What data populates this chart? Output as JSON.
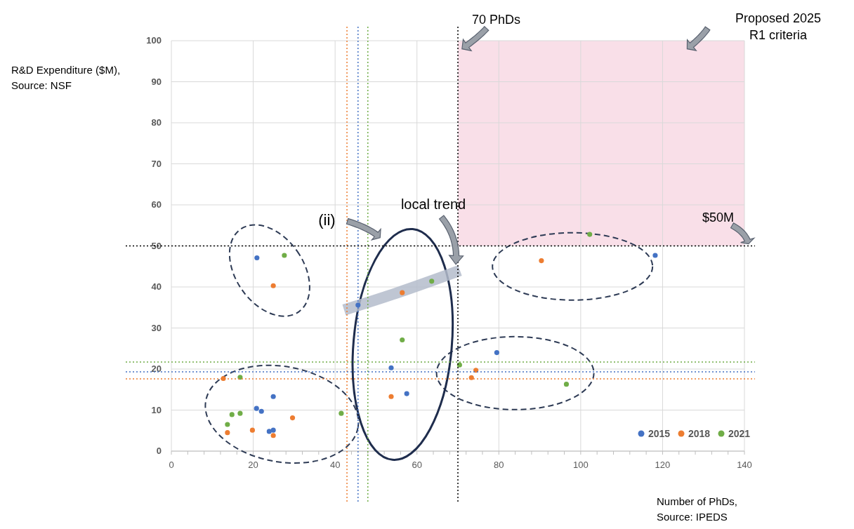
{
  "chart_data": {
    "type": "scatter",
    "xlabel": "Number of PhDs, Source: IPEDS",
    "ylabel": "R&D Expenditure ($M), Source: NSF",
    "xlim": [
      0,
      140
    ],
    "ylim": [
      0,
      100
    ],
    "xticks": [
      0,
      20,
      40,
      60,
      80,
      100,
      120,
      140
    ],
    "yticks": [
      0,
      10,
      20,
      30,
      40,
      50,
      60,
      70,
      80,
      90,
      100
    ],
    "grid": true,
    "legend": "bottom right",
    "marker": "circle",
    "series": [
      {
        "name": "2015",
        "color": "#4472c4",
        "x": [
          20.9,
          45.6,
          53.7,
          57.5,
          79.5,
          118.2,
          20.8,
          22,
          24.9,
          23.9,
          24.9
        ],
        "values": [
          47.1,
          35.6,
          20.3,
          14.0,
          24.0,
          47.7,
          10.4,
          9.7,
          13.3,
          4.8,
          5.1
        ]
      },
      {
        "name": "2018",
        "color": "#ed7d31",
        "x": [
          24.9,
          56.4,
          53.7,
          12.7,
          29.6,
          19.8,
          13.7,
          24.9,
          90.4,
          74.4,
          73.3
        ],
        "values": [
          40.3,
          38.6,
          13.3,
          17.7,
          8.1,
          5.1,
          4.5,
          3.8,
          46.4,
          19.7,
          17.9
        ]
      },
      {
        "name": "2021",
        "color": "#70ad47",
        "x": [
          27.6,
          63.6,
          56.4,
          16.8,
          14.8,
          16.8,
          13.7,
          41.5,
          102.2,
          70.4,
          96.5
        ],
        "values": [
          47.7,
          41.4,
          27.1,
          18.0,
          8.9,
          9.2,
          6.5,
          9.2,
          52.8,
          21.0,
          16.3
        ]
      },
      {
        "type": "line",
        "marker": "none",
        "color": "#b4bccb",
        "x": [
          42.2,
          55,
          70.5
        ],
        "values": [
          34.4,
          38.5,
          44
        ]
      }
    ],
    "ref_lines": [
      {
        "axis": "x",
        "value": 70,
        "label": "70 PhDs",
        "color": "#000000",
        "line_style": "dotted"
      },
      {
        "axis": "y",
        "value": 50,
        "label": "$50M",
        "color": "#000000",
        "line_style": "dotted"
      },
      {
        "axis": "x",
        "value": 42.9,
        "color": "#ed7d31",
        "line_style": "dotted"
      },
      {
        "axis": "x",
        "value": 45.6,
        "color": "#4472c4",
        "line_style": "dotted"
      },
      {
        "axis": "x",
        "value": 48,
        "color": "#70ad47",
        "line_style": "dotted"
      },
      {
        "axis": "y",
        "value": 21.7,
        "color": "#70ad47",
        "line_style": "dotted"
      },
      {
        "axis": "y",
        "value": 19.3,
        "color": "#4472c4",
        "line_style": "dotted"
      },
      {
        "axis": "y",
        "value": 17.6,
        "color": "#ed7d31",
        "line_style": "dotted"
      }
    ],
    "bands": [
      {
        "axis": "x",
        "from": 70,
        "to": 140,
        "label": "Proposed 2025 R1 criteria",
        "color": "#f9dfe8"
      }
    ],
    "annotations": [
      "(ii)",
      "local trend"
    ]
  }
}
